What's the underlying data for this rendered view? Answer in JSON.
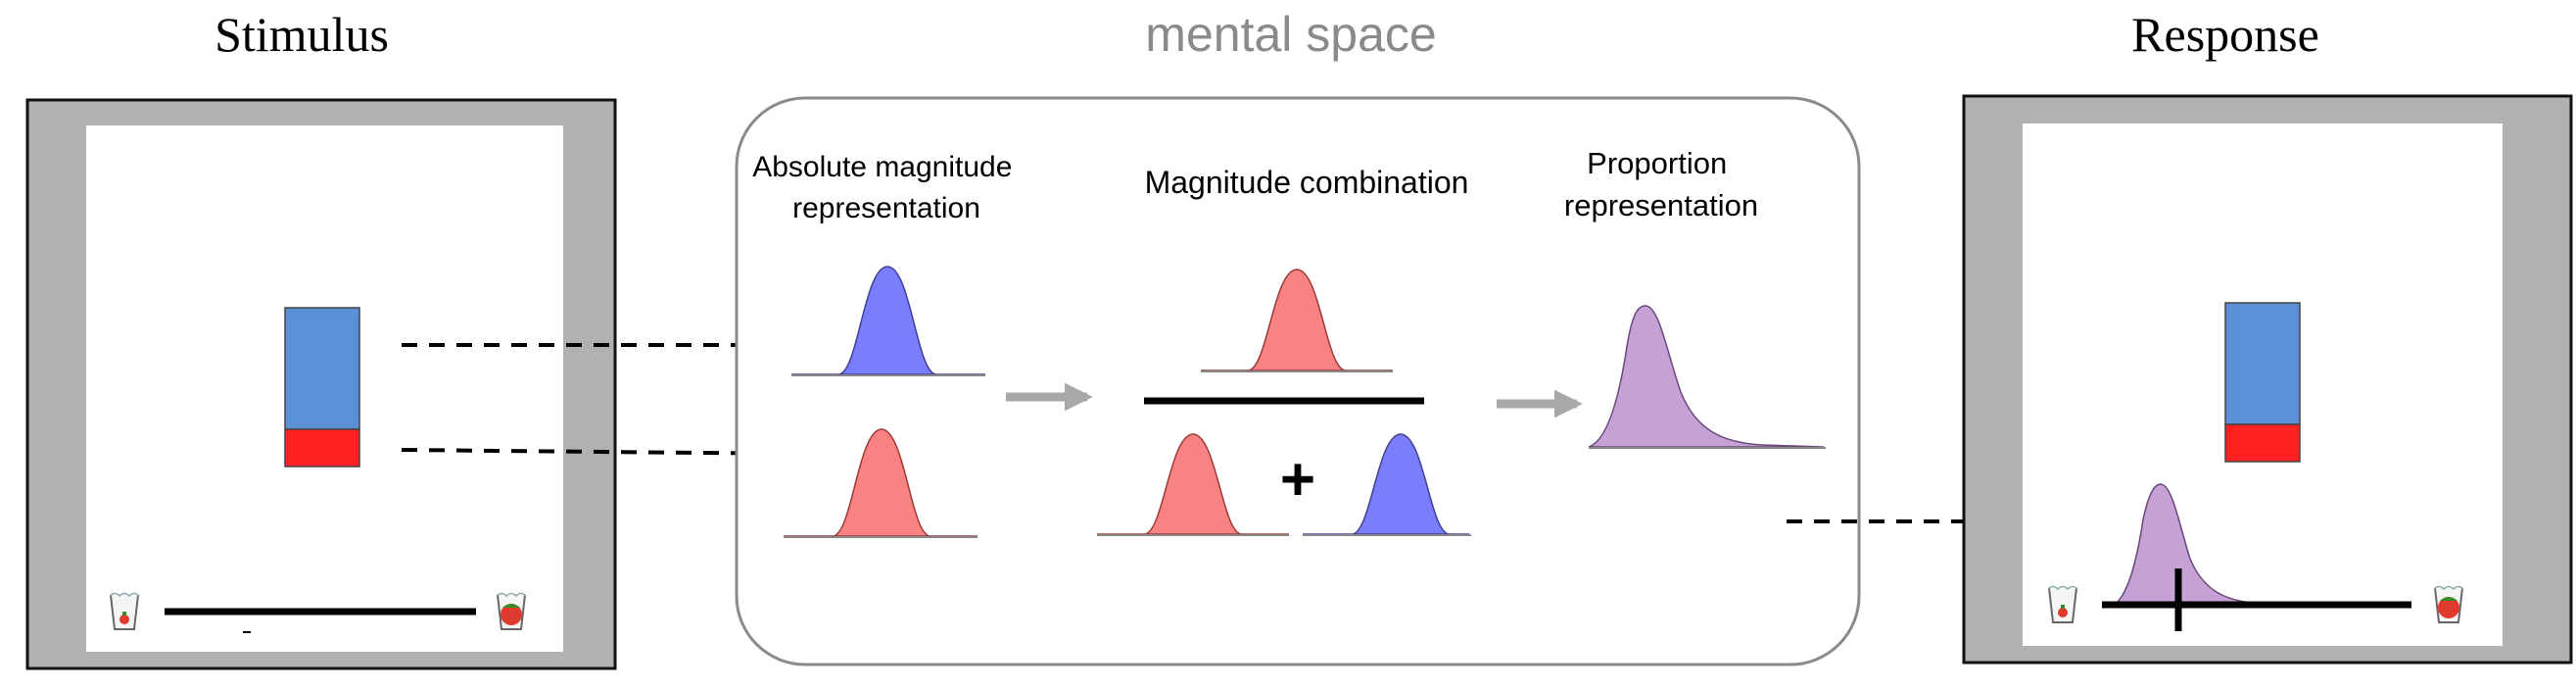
{
  "panels": {
    "stimulus": {
      "title": "Stimulus",
      "bar_proportion_red": 0.2
    },
    "mental_space": {
      "title": "mental space",
      "stages": [
        {
          "label_lines": [
            "Absolute magnitude",
            "representation"
          ]
        },
        {
          "label_lines": [
            "Magnitude combination"
          ]
        },
        {
          "label_lines": [
            "Proportion",
            "representation"
          ]
        }
      ],
      "plus_sign": "+"
    },
    "response": {
      "title": "Response",
      "bar_proportion_red": 0.2
    }
  },
  "colors": {
    "frame_gray": "#b1b1b1",
    "blue_bar": "#5b8fd6",
    "red_bar": "#ff2020",
    "blue_curve": "#7b7dff",
    "red_curve": "#f98383",
    "purple_curve": "#c6a1d6",
    "process_arrow": "#a8a8a8",
    "mental_space_text": "#8a8a8a"
  }
}
